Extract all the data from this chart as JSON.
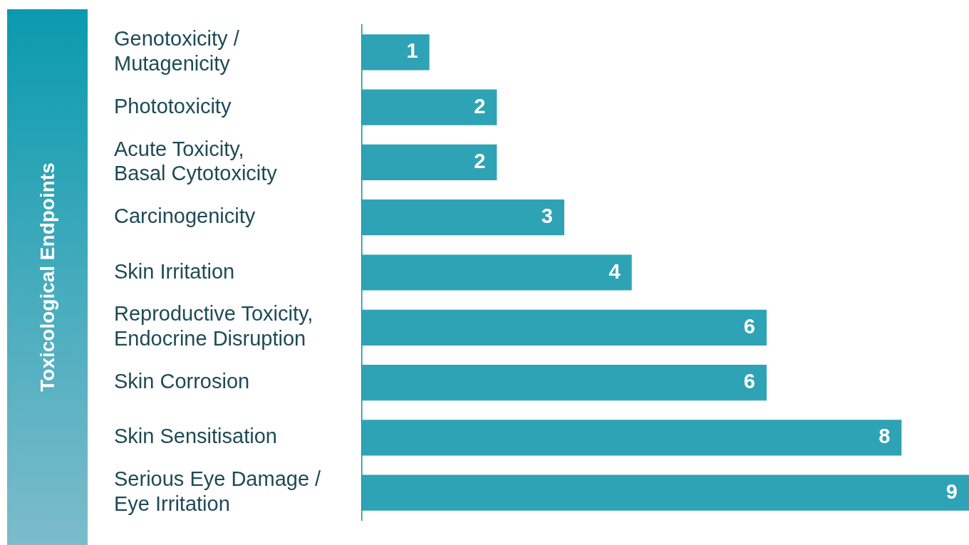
{
  "chart_data": {
    "type": "bar",
    "orientation": "horizontal",
    "ylabel": "Toxicological Endpoints",
    "categories": [
      "Genotoxicity / Mutagenicity",
      "Phototoxicity",
      "Acute Toxicity, Basal Cytotoxicity",
      "Carcinogenicity",
      "Skin Irritation",
      "Reproductive Toxicity, Endocrine Disruption",
      "Skin Corrosion",
      "Skin Sensitisation",
      "Serious Eye Damage / Eye Irritation"
    ],
    "values": [
      1,
      2,
      2,
      3,
      4,
      6,
      6,
      8,
      9
    ],
    "color": "#2ea3b5",
    "data_labels": true,
    "legend": false
  }
}
